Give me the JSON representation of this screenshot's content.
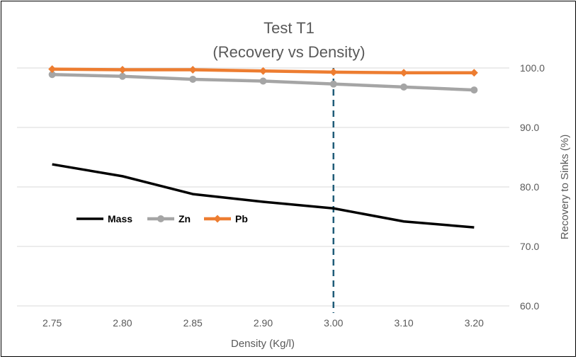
{
  "chart_data": {
    "type": "line",
    "title_line1": "Test T1",
    "title_line2": "(Recovery vs Density)",
    "xlabel": "Density (Kg/l)",
    "ylabel": "Recovery to Sinks (%)",
    "categories": [
      "2.75",
      "2.80",
      "2.85",
      "2.90",
      "3.00",
      "3.10",
      "3.20"
    ],
    "ylim": [
      60,
      100
    ],
    "y_ticks": [
      "60.0",
      "70.0",
      "80.0",
      "90.0",
      "100.0"
    ],
    "y_tick_values": [
      60,
      70,
      80,
      90,
      100
    ],
    "grid": true,
    "y_axis_side": "right",
    "legend_position": "center-left",
    "reference_line": {
      "category": "3.00",
      "style": "dashed",
      "color": "#1F5C78"
    },
    "series": [
      {
        "name": "Mass",
        "color": "#000000",
        "marker": "none",
        "values": [
          83.8,
          81.8,
          78.8,
          77.5,
          76.4,
          74.2,
          73.2
        ]
      },
      {
        "name": "Zn",
        "color": "#A5A5A5",
        "marker": "circle",
        "values": [
          98.9,
          98.6,
          98.1,
          97.8,
          97.3,
          96.8,
          96.3
        ]
      },
      {
        "name": "Pb",
        "color": "#ED7D31",
        "marker": "diamond",
        "values": [
          99.8,
          99.7,
          99.7,
          99.5,
          99.3,
          99.2,
          99.2
        ]
      }
    ]
  }
}
